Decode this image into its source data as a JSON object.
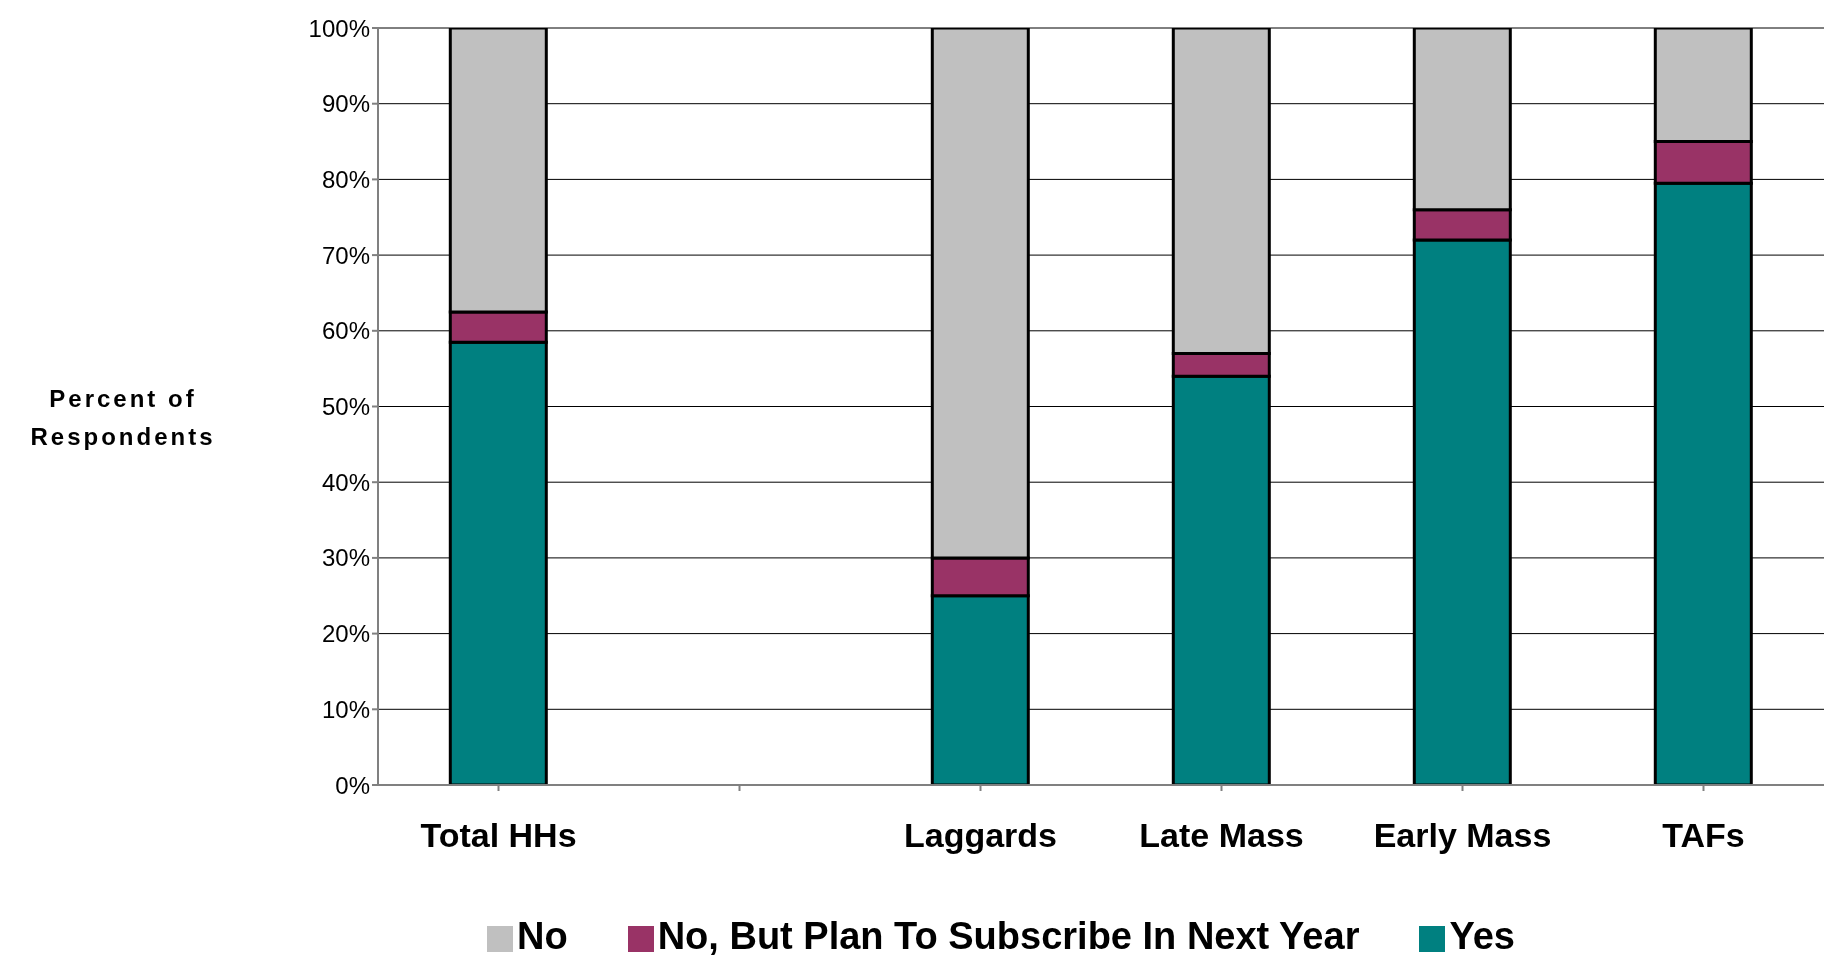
{
  "chart_data": {
    "type": "bar",
    "stacked": true,
    "ylabel": "Percent of Respondents",
    "categories": [
      "Total HHs",
      null,
      "Laggards",
      "Late Mass",
      "Early Mass",
      "TAFs"
    ],
    "series": [
      {
        "name": "Yes",
        "color": "#008080",
        "values": [
          58.5,
          null,
          25,
          54,
          72,
          79.5
        ]
      },
      {
        "name": "No, But Plan To Subscribe In Next Year",
        "color": "#993366",
        "values": [
          4,
          null,
          5,
          3,
          4,
          5.5
        ]
      },
      {
        "name": "No",
        "color": "#c0c0c0",
        "values": [
          37.5,
          null,
          70,
          43,
          24,
          15
        ]
      }
    ],
    "ylim": [
      0,
      100
    ],
    "yticks": [
      {
        "value": 0,
        "label": "0%"
      },
      {
        "value": 10,
        "label": "10%"
      },
      {
        "value": 20,
        "label": "20%"
      },
      {
        "value": 30,
        "label": "30%"
      },
      {
        "value": 40,
        "label": "40%"
      },
      {
        "value": 50,
        "label": "50%"
      },
      {
        "value": 60,
        "label": "60%"
      },
      {
        "value": 70,
        "label": "70%"
      },
      {
        "value": 80,
        "label": "80%"
      },
      {
        "value": 90,
        "label": "90%"
      },
      {
        "value": 100,
        "label": "100%"
      }
    ],
    "grid": "y",
    "legend": "bottom"
  }
}
